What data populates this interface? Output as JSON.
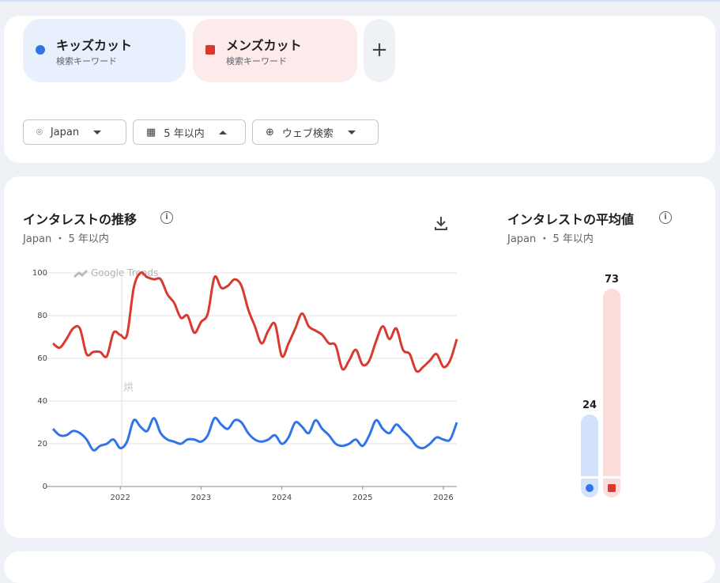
{
  "terms": [
    {
      "name": "キッズカット",
      "sub": "検索キーワード",
      "color": "#3174e8",
      "bg": "#e9f0fd"
    },
    {
      "name": "メンズカット",
      "sub": "検索キーワード",
      "color": "#d93a30",
      "bg": "#fcebea"
    }
  ],
  "add_label": "+",
  "filters": {
    "region": "Japan",
    "period": "5 年以内",
    "type": "ウェブ検索"
  },
  "interest_over_time": {
    "title": "インタレストの推移",
    "subtitle": "Japan ・ 5 年以内",
    "info": "i"
  },
  "average": {
    "title": "インタレストの平均値",
    "subtitle": "Japan ・ 5 年以内",
    "info": "i"
  },
  "chart_data": [
    {
      "type": "line",
      "watermark": "Google Trends",
      "annotation": "烘",
      "ylim": [
        0,
        100
      ],
      "yticks": [
        "0",
        "20",
        "40",
        "60",
        "80",
        "100"
      ],
      "xticks": [
        "2022",
        "2023",
        "2024",
        "2025",
        "2026"
      ],
      "x_range": [
        "2021-03",
        "2026-03"
      ],
      "grid": true,
      "series": [
        {
          "name": "キッズカット",
          "color": "#3174e8",
          "values": [
            27,
            24,
            24,
            26,
            25,
            22,
            17,
            19,
            20,
            22,
            18,
            21,
            31,
            28,
            26,
            32,
            25,
            22,
            21,
            20,
            22,
            22,
            21,
            24,
            32,
            29,
            27,
            31,
            30,
            25,
            22,
            21,
            22,
            24,
            20,
            23,
            30,
            28,
            25,
            31,
            27,
            24,
            20,
            19,
            20,
            22,
            19,
            24,
            31,
            27,
            25,
            29,
            26,
            23,
            19,
            18,
            20,
            23,
            22,
            22,
            30
          ]
        },
        {
          "name": "メンズカット",
          "color": "#d93a30",
          "values": [
            67,
            65,
            69,
            74,
            74,
            62,
            63,
            63,
            61,
            72,
            71,
            71,
            93,
            100,
            98,
            97,
            97,
            90,
            86,
            79,
            80,
            72,
            77,
            81,
            98,
            93,
            94,
            97,
            94,
            83,
            75,
            67,
            73,
            76,
            61,
            67,
            74,
            81,
            75,
            73,
            71,
            67,
            66,
            55,
            59,
            64,
            57,
            59,
            68,
            75,
            69,
            74,
            64,
            62,
            54,
            56,
            59,
            62,
            56,
            59,
            69
          ]
        }
      ]
    },
    {
      "type": "bar",
      "categories": [
        "キッズカット",
        "メンズカット"
      ],
      "values": [
        24,
        73
      ],
      "labels": [
        "24",
        "73"
      ],
      "colors": [
        "#3174e8",
        "#d93a30"
      ],
      "bg_colors": [
        "#d3e2fb",
        "#fadcda"
      ]
    }
  ]
}
